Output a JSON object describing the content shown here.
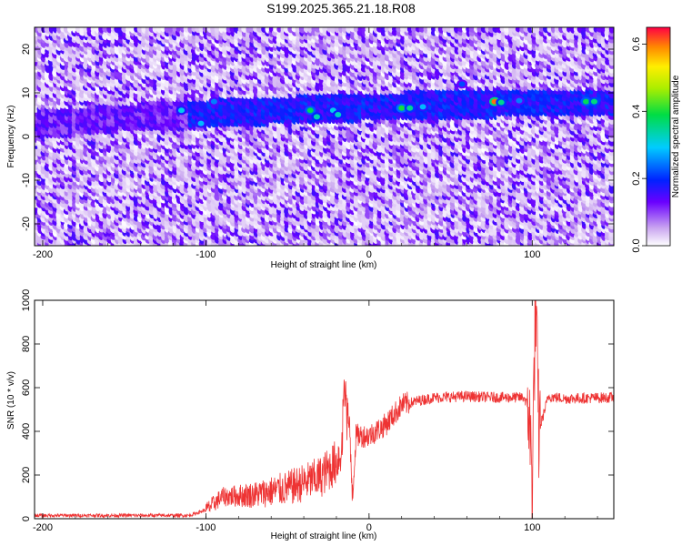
{
  "title": "S199.2025.365.21.18.R08",
  "chart_data": [
    {
      "type": "heatmap",
      "xlabel": "Height of straight line (km)",
      "ylabel": "Frequency (Hz)",
      "xlim": [
        -205,
        150
      ],
      "ylim": [
        -25,
        25
      ],
      "xticks": [
        -200,
        -100,
        0,
        100
      ],
      "yticks": [
        20,
        10,
        0,
        -10,
        -20
      ],
      "colorbar": {
        "label": "Normalized spectral amplitude",
        "range": [
          0.0,
          0.65
        ],
        "ticks": [
          0.0,
          0.2,
          0.4,
          0.6
        ]
      },
      "band": [
        {
          "x": -205,
          "freq": 3
        },
        {
          "x": -150,
          "freq": 4.5
        },
        {
          "x": -100,
          "freq": 5.5
        },
        {
          "x": -50,
          "freq": 6.3
        },
        {
          "x": 0,
          "freq": 7
        },
        {
          "x": 50,
          "freq": 7.5
        },
        {
          "x": 100,
          "freq": 8
        },
        {
          "x": 150,
          "freq": 8
        }
      ],
      "hotspots": [
        {
          "x": -115,
          "freq": 6,
          "amp": 0.3
        },
        {
          "x": -95,
          "freq": 8,
          "amp": 0.25
        },
        {
          "x": -103,
          "freq": 3,
          "amp": 0.28
        },
        {
          "x": -36,
          "freq": 6,
          "amp": 0.38
        },
        {
          "x": -32,
          "freq": 4.5,
          "amp": 0.33
        },
        {
          "x": -22,
          "freq": 6,
          "amp": 0.3
        },
        {
          "x": -19,
          "freq": 5,
          "amp": 0.32
        },
        {
          "x": 20,
          "freq": 6.5,
          "amp": 0.4
        },
        {
          "x": 25,
          "freq": 6.5,
          "amp": 0.35
        },
        {
          "x": 33,
          "freq": 6.8,
          "amp": 0.28
        },
        {
          "x": 57,
          "freq": 12,
          "amp": 0.22
        },
        {
          "x": 77,
          "freq": 8,
          "amp": 0.6
        },
        {
          "x": 81,
          "freq": 7.8,
          "amp": 0.35
        },
        {
          "x": 92,
          "freq": 8.2,
          "amp": 0.25
        },
        {
          "x": 133,
          "freq": 8,
          "amp": 0.38
        },
        {
          "x": 138,
          "freq": 8,
          "amp": 0.36
        }
      ]
    },
    {
      "type": "line",
      "xlabel": "Height of straight line (km)",
      "ylabel": "SNR (10 * v/v)",
      "xlim": [
        -205,
        150
      ],
      "ylim": [
        0,
        1000
      ],
      "xticks": [
        -200,
        -100,
        0,
        100
      ],
      "yticks": [
        0,
        200,
        400,
        600,
        800,
        1000
      ],
      "color": "#ee3333",
      "series": [
        {
          "x": [
            -205,
            -150,
            -110,
            -100,
            -90,
            -70,
            -50,
            -30,
            -20,
            -15,
            -13,
            -10,
            -8,
            0,
            10,
            20,
            30,
            40,
            60,
            80,
            95,
            98,
            100,
            102,
            104,
            110,
            120,
            150
          ],
          "y": [
            15,
            15,
            15,
            40,
            100,
            110,
            140,
            190,
            260,
            350,
            500,
            120,
            380,
            380,
            430,
            520,
            540,
            555,
            560,
            555,
            555,
            500,
            150,
            1000,
            400,
            560,
            550,
            555
          ]
        }
      ]
    }
  ]
}
